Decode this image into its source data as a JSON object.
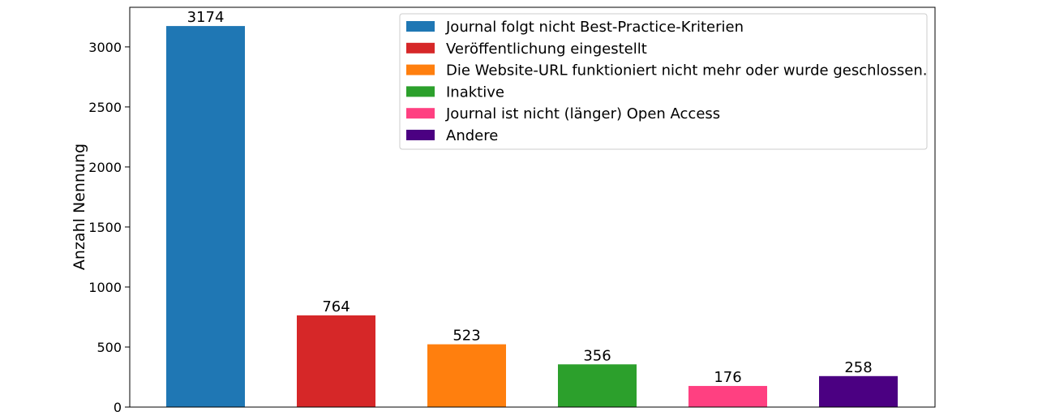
{
  "chart_data": {
    "type": "bar",
    "categories": [
      "Journal folgt nicht Best-Practice-Kriterien",
      "Veröffentlichung eingestellt",
      "Die Website-URL funktioniert nicht mehr oder wurde geschlossen.",
      "Inaktive",
      "Journal ist nicht (länger) Open Access",
      "Andere"
    ],
    "values": [
      3174,
      764,
      523,
      356,
      176,
      258
    ],
    "colors": [
      "#1f77b4",
      "#d62728",
      "#ff7f0e",
      "#2ca02c",
      "#ff4081",
      "#4b0082"
    ],
    "ylabel": "Anzahl Nennung",
    "xlabel": "",
    "ylim": [
      0,
      3330
    ],
    "yticks": [
      0,
      500,
      1000,
      1500,
      2000,
      2500,
      3000
    ],
    "legend_position": "top-right",
    "grid": false
  }
}
